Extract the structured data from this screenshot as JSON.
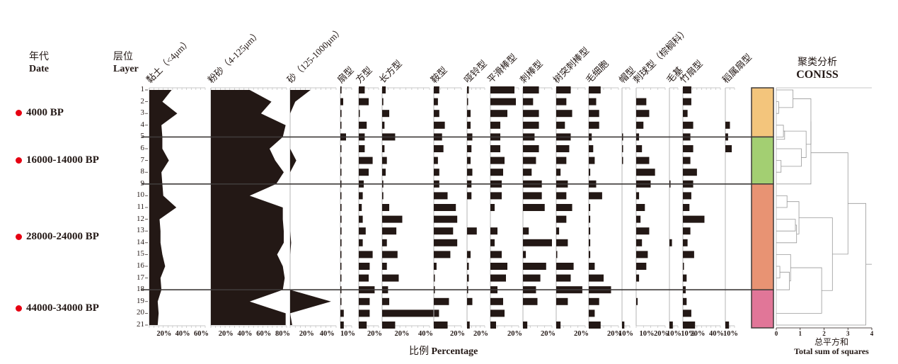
{
  "headers": {
    "date_cn": "年代",
    "date_en": "Date",
    "layer_cn": "层位",
    "layer_en": "Layer"
  },
  "dates": [
    {
      "label": "4000 BP",
      "layer": 3
    },
    {
      "label": "16000-14000 BP",
      "layer": 7
    },
    {
      "label": "28000-24000 BP",
      "layer": 13.5
    },
    {
      "label": "44000-34000 BP",
      "layer": 19.6
    }
  ],
  "x_axis_title_cn": "比例",
  "x_axis_title_en": "Percentage",
  "coniss": {
    "title_cn": "聚类分析",
    "title_en": "CONISS",
    "axis_title_cn": "总平方和",
    "axis_title_en": "Total sum of squares",
    "ticks": [
      "0",
      "1",
      "2",
      "3",
      "4"
    ]
  },
  "chart_data": {
    "type": "stratigraphic-diagram",
    "layers": [
      1,
      2,
      3,
      4,
      5,
      6,
      7,
      8,
      9,
      10,
      11,
      12,
      13,
      14,
      15,
      16,
      17,
      18,
      19,
      20,
      21
    ],
    "zone_boundaries_after_layer": [
      5,
      9,
      18
    ],
    "zones": [
      {
        "from": 1,
        "to": 5,
        "color": "#f3c57c"
      },
      {
        "from": 5,
        "to": 9,
        "color": "#a3cf72"
      },
      {
        "from": 9,
        "to": 18,
        "color": "#e89373"
      },
      {
        "from": 18,
        "to": 21,
        "color": "#e17698"
      }
    ],
    "grain_size": [
      {
        "name": "黏土（<4μm）",
        "max": 60,
        "ticks": [
          "20%",
          "40%",
          "60%"
        ],
        "values": [
          24,
          14,
          30,
          13,
          14,
          14,
          21,
          13,
          14,
          15,
          29,
          11,
          12,
          12,
          14,
          17,
          12,
          13,
          9,
          10,
          9
        ]
      },
      {
        "name": "粉砂（4-125μm）",
        "max": 80,
        "ticks": [
          "20%",
          "40%",
          "60%",
          "80%"
        ],
        "values": [
          41,
          64,
          53,
          79,
          76,
          62,
          68,
          77,
          69,
          41,
          76,
          76,
          77,
          77,
          70,
          76,
          78,
          76,
          41,
          79,
          79
        ]
      },
      {
        "name": "砂（125-1000μm）",
        "max": 45,
        "ticks": [
          "20%",
          "40%"
        ],
        "values": [
          20,
          5,
          0,
          0,
          0,
          0,
          6,
          0,
          0,
          0,
          0,
          0,
          0,
          1,
          0,
          0,
          0,
          0,
          40,
          0,
          2
        ]
      }
    ],
    "phytoliths": [
      {
        "name": "扇型",
        "max": 10,
        "ticks": [
          "10%"
        ],
        "values": [
          1,
          2.5,
          1,
          0.5,
          5,
          0.5,
          0.5,
          0.5,
          0.5,
          0.5,
          1,
          1,
          1,
          1,
          0.5,
          0.5,
          0.5,
          0.5,
          0.5,
          3,
          3
        ]
      },
      {
        "name": "方型",
        "max": 20,
        "ticks": [
          "20%"
        ],
        "values": [
          6,
          10,
          1,
          8,
          6,
          6,
          14,
          10,
          5,
          4,
          3,
          4,
          7,
          4,
          14,
          11,
          10,
          16,
          11,
          11,
          8
        ]
      },
      {
        "name": "长方型",
        "max": 40,
        "ticks": [
          "20%",
          "40%"
        ],
        "values": [
          3,
          1,
          6,
          2,
          11,
          2,
          4,
          3,
          1,
          1,
          6,
          17,
          12,
          4,
          13,
          4,
          14,
          5,
          6,
          48,
          11
        ]
      },
      {
        "name": "鞍型",
        "max": 20,
        "ticks": [
          "20%"
        ],
        "values": [
          4,
          3,
          4,
          8,
          6,
          7,
          3,
          4,
          4,
          10,
          16,
          17,
          14,
          17,
          12,
          2,
          0.5,
          0.5,
          11,
          0,
          10
        ]
      },
      {
        "name": "哑铃型",
        "max": 20,
        "ticks": [
          "20%"
        ],
        "values": [
          2,
          1,
          4,
          4,
          6,
          5,
          4,
          6,
          5,
          5,
          0,
          0,
          11,
          0,
          4,
          2,
          2,
          1,
          6,
          0,
          3
        ]
      },
      {
        "name": "平滑棒型",
        "max": 20,
        "ticks": [
          "20%"
        ],
        "values": [
          17,
          18,
          12,
          7,
          7,
          7,
          10,
          9,
          8,
          8,
          3,
          0,
          5,
          3,
          8,
          12,
          11,
          5,
          9,
          10,
          4
        ]
      },
      {
        "name": "刺棒型",
        "max": 20,
        "ticks": [
          "20%"
        ],
        "values": [
          11,
          7,
          11,
          11,
          8,
          11,
          9,
          6,
          13,
          13,
          15,
          0,
          4,
          20,
          2,
          16,
          12,
          9,
          10,
          0,
          3
        ]
      },
      {
        "name": "树突刺棒型",
        "max": 20,
        "ticks": [
          "20%"
        ],
        "values": [
          10,
          7,
          11,
          6,
          10,
          9,
          7,
          3,
          8,
          7,
          11,
          7,
          2,
          8,
          0.5,
          12,
          10,
          18,
          8,
          0,
          3
        ]
      },
      {
        "name": "毛细胞",
        "max": 20,
        "ticks": [
          "20%"
        ],
        "values": [
          8,
          5,
          7,
          7,
          2,
          3,
          4,
          1,
          5,
          9,
          1,
          1,
          1,
          1,
          1,
          4,
          10,
          15,
          7,
          4,
          8
        ]
      },
      {
        "name": "帽型",
        "max": 10,
        "ticks": [
          "10%"
        ],
        "values": [
          0,
          0,
          0,
          0,
          0.5,
          0.5,
          0.5,
          0,
          0,
          0,
          0,
          0,
          0,
          0,
          0,
          0,
          0,
          0,
          0,
          0,
          3
        ]
      },
      {
        "name": "刺球型（棕榈科）",
        "max": 20,
        "ticks": [
          "10%",
          "20%"
        ],
        "values": [
          0,
          7,
          9,
          5,
          2,
          4,
          9,
          13,
          10,
          2,
          6,
          3,
          9,
          4,
          8,
          7,
          2,
          0,
          1,
          0,
          0
        ]
      },
      {
        "name": "毛基",
        "max": 10,
        "ticks": [
          "10%"
        ],
        "values": [
          0,
          0,
          0,
          0,
          0,
          0,
          0,
          0,
          1,
          0,
          0,
          0,
          0,
          3,
          0,
          0,
          0,
          0,
          0,
          0,
          4
        ]
      },
      {
        "name": "竹扇型",
        "max": 40,
        "ticks": [
          "10%",
          "20%",
          "40%"
        ],
        "values": [
          9,
          9,
          5,
          11,
          8,
          11,
          8,
          15,
          11,
          9,
          7,
          23,
          8,
          5,
          12,
          0.5,
          4,
          3,
          4,
          9,
          13
        ]
      },
      {
        "name": "稻属扇型",
        "max": 10,
        "ticks": [
          "10%"
        ],
        "values": [
          0,
          0,
          0,
          5,
          3,
          7,
          0,
          0,
          0,
          0,
          0,
          0,
          0,
          0,
          0,
          0,
          0,
          0,
          0,
          0,
          4
        ]
      }
    ],
    "coniss_dendrogram": "21 leaves; top-level merge at ~3.75, zones 1-9 vs 10-21 merging at ~3.0",
    "xlabel": "比例 Percentage",
    "ylabel": "层位 Layer"
  }
}
